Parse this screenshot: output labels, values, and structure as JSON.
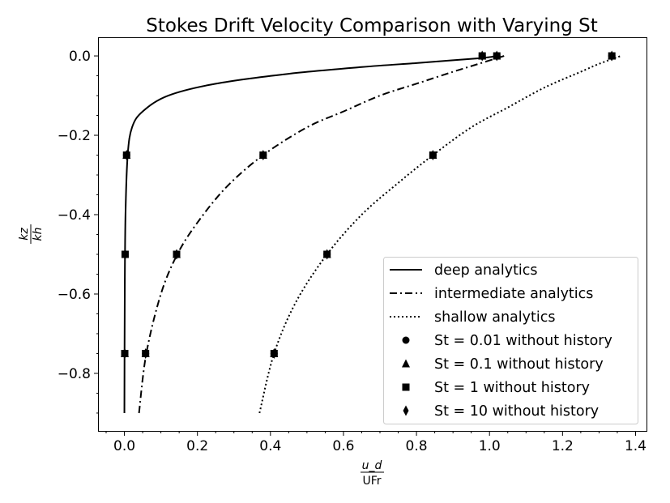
{
  "chart_data": {
    "type": "line",
    "title": "Stokes Drift Velocity Comparison with Varying St",
    "xlabel": {
      "numerator": "u_d",
      "denominator": "UFr"
    },
    "ylabel": {
      "numerator": "kz",
      "denominator": "kh"
    },
    "xlim": [
      -0.07,
      1.43
    ],
    "ylim": [
      -0.945,
      0.045
    ],
    "x_ticks": [
      0.0,
      0.2,
      0.4,
      0.6,
      0.8,
      1.0,
      1.2,
      1.4
    ],
    "x_tick_labels": [
      "0.0",
      "0.2",
      "0.4",
      "0.6",
      "0.8",
      "1.0",
      "1.2",
      "1.4"
    ],
    "y_ticks": [
      0.0,
      -0.2,
      -0.4,
      -0.6,
      -0.8
    ],
    "y_tick_labels": [
      "0.0",
      "−0.2",
      "−0.4",
      "−0.6",
      "−0.8"
    ],
    "minor_ticks": true,
    "grid": false,
    "legend_position": "lower-right",
    "series": [
      {
        "name": "deep analytics",
        "kind": "line",
        "style": "solid",
        "x": [
          0.0,
          0.001,
          0.003,
          0.009,
          0.021,
          0.05,
          0.12,
          0.25,
          0.45,
          0.65,
          0.8,
          0.9,
          0.97,
          1.0,
          1.02
        ],
        "y": [
          -0.9,
          -0.6,
          -0.4,
          -0.25,
          -0.18,
          -0.14,
          -0.1,
          -0.07,
          -0.045,
          -0.028,
          -0.018,
          -0.011,
          -0.006,
          -0.003,
          0.0
        ]
      },
      {
        "name": "intermediate analytics",
        "kind": "line",
        "style": "dashdot",
        "x": [
          0.04,
          0.06,
          0.1,
          0.145,
          0.2,
          0.28,
          0.38,
          0.5,
          0.6,
          0.7,
          0.8,
          0.9,
          0.97,
          1.04
        ],
        "y": [
          -0.9,
          -0.75,
          -0.6,
          -0.5,
          -0.42,
          -0.33,
          -0.25,
          -0.18,
          -0.14,
          -0.1,
          -0.07,
          -0.04,
          -0.02,
          0.0
        ]
      },
      {
        "name": "shallow analytics",
        "kind": "line",
        "style": "dotted",
        "x": [
          0.37,
          0.41,
          0.47,
          0.555,
          0.65,
          0.75,
          0.845,
          0.95,
          1.05,
          1.15,
          1.25,
          1.3,
          1.36
        ],
        "y": [
          -0.9,
          -0.75,
          -0.62,
          -0.5,
          -0.4,
          -0.32,
          -0.25,
          -0.18,
          -0.13,
          -0.08,
          -0.04,
          -0.02,
          0.0
        ]
      },
      {
        "name": "St = 0.01 without history",
        "kind": "marker",
        "marker": "circle",
        "x": [
          0.001,
          0.006,
          0.98,
          0.058,
          0.143,
          0.38,
          1.02,
          0.41,
          0.555,
          0.845,
          1.335
        ],
        "y": [
          -0.75,
          -0.25,
          0.0,
          -0.75,
          -0.5,
          -0.25,
          0.0,
          -0.75,
          -0.5,
          -0.25,
          0.0
        ]
      },
      {
        "name": "St = 0.1 without history",
        "kind": "marker",
        "marker": "triangle",
        "x": [
          0.001,
          0.006,
          0.98,
          0.058,
          0.143,
          0.38,
          1.02,
          0.41,
          0.555,
          0.845,
          1.335
        ],
        "y": [
          -0.75,
          -0.25,
          0.0,
          -0.75,
          -0.5,
          -0.25,
          0.0,
          -0.75,
          -0.5,
          -0.25,
          0.0
        ]
      },
      {
        "name": "St = 1 without history",
        "kind": "marker",
        "marker": "square",
        "x": [
          0.001,
          0.002,
          0.006,
          0.98,
          0.058,
          0.143,
          0.38,
          1.02,
          0.41,
          0.555,
          0.845,
          1.335
        ],
        "y": [
          -0.75,
          -0.5,
          -0.25,
          0.0,
          -0.75,
          -0.5,
          -0.25,
          0.0,
          -0.75,
          -0.5,
          -0.25,
          0.0
        ]
      },
      {
        "name": "St = 10 without history",
        "kind": "marker",
        "marker": "diamond",
        "x": [
          0.001,
          0.002,
          0.006,
          0.98,
          0.058,
          0.143,
          0.38,
          1.02,
          0.41,
          0.555,
          0.845,
          1.335
        ],
        "y": [
          -0.75,
          -0.5,
          -0.25,
          0.0,
          -0.75,
          -0.5,
          -0.25,
          0.0,
          -0.75,
          -0.5,
          -0.25,
          0.0
        ]
      }
    ]
  }
}
